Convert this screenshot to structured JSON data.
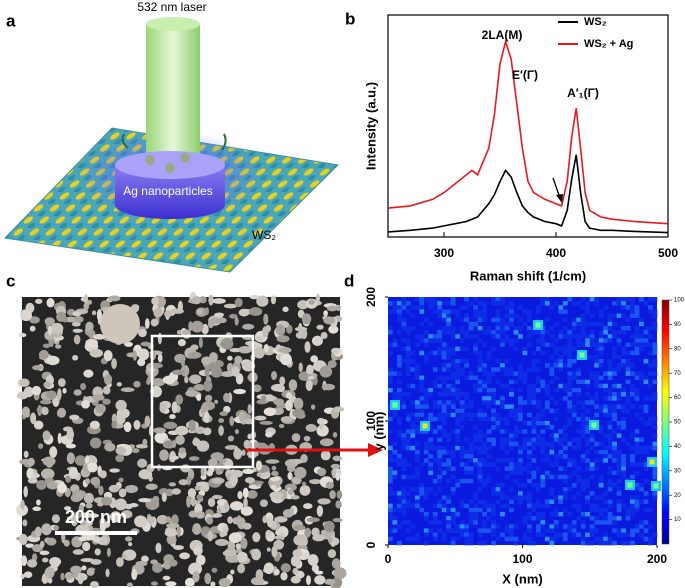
{
  "panels": {
    "a": "a",
    "b": "b",
    "c": "c",
    "d": "d"
  },
  "illustration": {
    "laser": "532 nm laser",
    "particles": "Ag nanoparticles",
    "substrate": "WS₂"
  },
  "micrograph": {
    "scale_bar": "200 nm"
  },
  "chart_data": [
    {
      "type": "line",
      "xlabel": "Raman shift (1/cm)",
      "ylabel": "Intensity (a.u.)",
      "x": [
        250,
        270,
        290,
        300,
        310,
        320,
        325,
        330,
        340,
        345,
        350,
        355,
        360,
        365,
        370,
        375,
        380,
        390,
        400,
        405,
        410,
        414,
        418,
        422,
        426,
        430,
        440,
        450,
        470,
        500
      ],
      "series": [
        {
          "name": "WS₂",
          "color": "#000000",
          "values": [
            2.3,
            3,
            4,
            5,
            6,
            7,
            8,
            9,
            15,
            19,
            25,
            30,
            27,
            20,
            14,
            11,
            9,
            7,
            6,
            5,
            12,
            26,
            37,
            20,
            7,
            4,
            3,
            3,
            2.5,
            2
          ]
        },
        {
          "name": "WS₂ + Ag",
          "color": "#e8181c",
          "values": [
            13,
            14,
            17,
            20,
            24,
            28,
            30,
            28,
            40,
            55,
            78,
            88,
            80,
            60,
            40,
            25,
            20,
            17,
            15,
            14,
            25,
            45,
            58,
            40,
            20,
            12,
            9,
            8,
            7,
            6
          ]
        }
      ],
      "annotations": [
        "2LA(M)",
        "E′(Γ)",
        "A′₁(Γ)"
      ],
      "xlim": [
        250,
        500
      ],
      "xticks": [
        300,
        400,
        500
      ],
      "ylim": [
        0,
        100
      ],
      "legend": "upper right"
    },
    {
      "type": "heatmap",
      "xlabel": "X (nm)",
      "ylabel": "y (nm)",
      "xlim": [
        0,
        200
      ],
      "xticks": [
        0,
        100,
        200
      ],
      "ylim": [
        0,
        200
      ],
      "yticks": [
        0,
        100,
        200
      ],
      "colorbar": {
        "lim": [
          0,
          100
        ],
        "ticks": [
          10,
          20,
          30,
          40,
          50,
          60,
          70,
          80,
          90,
          100
        ]
      }
    }
  ]
}
